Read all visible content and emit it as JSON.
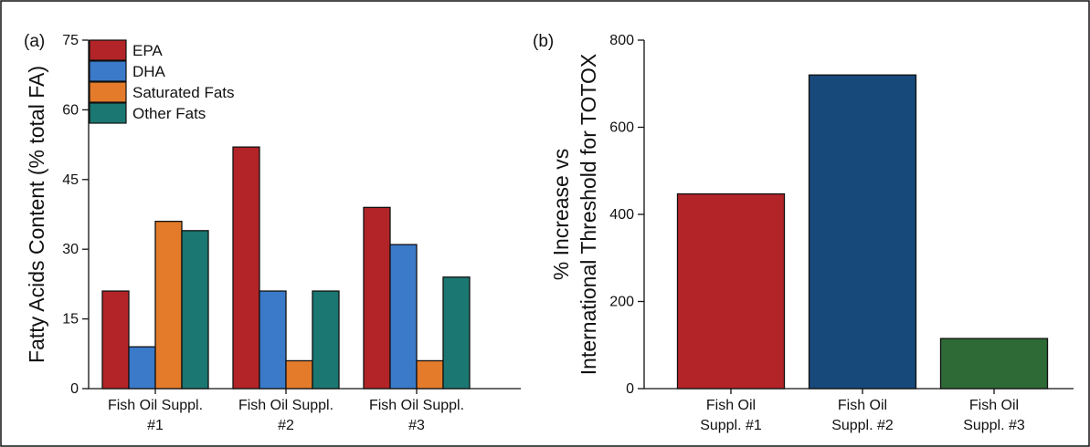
{
  "chart_data": [
    {
      "type": "bar",
      "panel_label": "(a)",
      "categories": [
        "Fish Oil Suppl.\n#1",
        "Fish Oil Suppl.\n#2",
        "Fish Oil Suppl.\n#3"
      ],
      "series": [
        {
          "name": "EPA",
          "color": "#b22428",
          "values": [
            21,
            52,
            39
          ]
        },
        {
          "name": "DHA",
          "color": "#3a7ac9",
          "values": [
            9,
            21,
            31
          ]
        },
        {
          "name": "Saturated Fats",
          "color": "#e37b2a",
          "values": [
            36,
            6,
            6
          ]
        },
        {
          "name": "Other Fats",
          "color": "#1b7771",
          "values": [
            34,
            21,
            24
          ]
        }
      ],
      "xlabel": "",
      "ylabel": "Fatty Acids Content (% total FA)",
      "ylim": [
        0,
        75
      ],
      "yticks": [
        0,
        15,
        30,
        45,
        60,
        75
      ],
      "legend": "top-left",
      "grid": false
    },
    {
      "type": "bar",
      "panel_label": "(b)",
      "categories": [
        "Fish Oil\nSuppl. #1",
        "Fish Oil\nSuppl. #2",
        "Fish Oil\nSuppl. #3"
      ],
      "values": [
        447,
        720,
        115
      ],
      "colors": [
        "#b22428",
        "#17497a",
        "#2d6a36"
      ],
      "xlabel": "",
      "ylabel": "% Increase vs\nInternational Threshold for TOTOX",
      "ylim": [
        0,
        800
      ],
      "yticks": [
        0,
        200,
        400,
        600,
        800
      ],
      "legend": "none",
      "grid": false
    }
  ]
}
